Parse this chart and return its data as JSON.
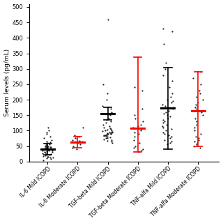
{
  "categories": [
    "IL-6 Mild ICOPD",
    "IL-6 Moderate ICOPD",
    "TGF-beta Mild ICOPD",
    "TGF-beta Moderate ICOPD",
    "TNF-alfa Mild ICOPD",
    "TNF-alfa Moderate ICOPD"
  ],
  "ylabel": "Serum levels (pg/mL)",
  "ylim": [
    0,
    510
  ],
  "yticks": [
    0,
    50,
    100,
    150,
    200,
    250,
    300,
    350,
    400,
    450,
    500
  ],
  "ytick_labels": [
    "0",
    "50",
    "100",
    "150",
    "200",
    "250",
    "300",
    "350",
    "400",
    "450",
    "500"
  ],
  "background_color": "#ffffff",
  "groups": [
    {
      "x": 1,
      "mean": 40,
      "sd_upper": 18,
      "sd_lower": 18,
      "color": "black",
      "dots": [
        5,
        8,
        10,
        12,
        14,
        15,
        16,
        18,
        20,
        22,
        23,
        25,
        25,
        26,
        28,
        30,
        32,
        33,
        35,
        35,
        36,
        37,
        38,
        38,
        39,
        40,
        40,
        40,
        41,
        42,
        43,
        44,
        44,
        45,
        45,
        46,
        47,
        48,
        50,
        50,
        52,
        54,
        55,
        57,
        60,
        62,
        65,
        70,
        75,
        80,
        90,
        95,
        100,
        110
      ]
    },
    {
      "x": 2,
      "mean": 62,
      "sd_upper": 18,
      "sd_lower": 18,
      "color": "red",
      "dots": [
        40,
        45,
        50,
        55,
        60,
        62,
        65,
        68,
        70,
        75,
        80,
        85,
        110
      ]
    },
    {
      "x": 3,
      "mean": 155,
      "sd_upper": 20,
      "sd_lower": 20,
      "color": "black",
      "dots": [
        60,
        65,
        68,
        70,
        72,
        75,
        75,
        78,
        80,
        82,
        83,
        85,
        85,
        86,
        87,
        88,
        89,
        90,
        90,
        91,
        92,
        93,
        95,
        95,
        97,
        98,
        100,
        100,
        102,
        105,
        108,
        110,
        115,
        120,
        125,
        130,
        135,
        140,
        150,
        160,
        170,
        180,
        200,
        220,
        250,
        460
      ]
    },
    {
      "x": 4,
      "mean": 107,
      "sd_upper": 230,
      "sd_lower": 77,
      "color": "red",
      "dots": [
        30,
        35,
        40,
        45,
        50,
        60,
        70,
        80,
        90,
        95,
        100,
        105,
        110,
        115,
        120,
        130,
        140,
        150,
        170,
        230,
        240
      ]
    },
    {
      "x": 5,
      "mean": 172,
      "sd_upper": 132,
      "sd_lower": 132,
      "color": "black",
      "dots": [
        55,
        60,
        65,
        70,
        75,
        80,
        85,
        90,
        95,
        100,
        105,
        110,
        115,
        120,
        125,
        130,
        135,
        140,
        145,
        150,
        155,
        160,
        165,
        170,
        175,
        180,
        185,
        190,
        195,
        200,
        210,
        220,
        240,
        260,
        280,
        300,
        320,
        380,
        420,
        430
      ]
    },
    {
      "x": 6,
      "mean": 165,
      "sd_upper": 125,
      "sd_lower": 115,
      "color": "red",
      "dots": [
        45,
        50,
        55,
        60,
        65,
        70,
        75,
        80,
        90,
        100,
        110,
        120,
        130,
        140,
        150,
        160,
        165,
        170,
        175,
        180,
        185,
        190,
        200,
        210,
        220,
        230,
        250,
        270,
        290
      ]
    }
  ]
}
